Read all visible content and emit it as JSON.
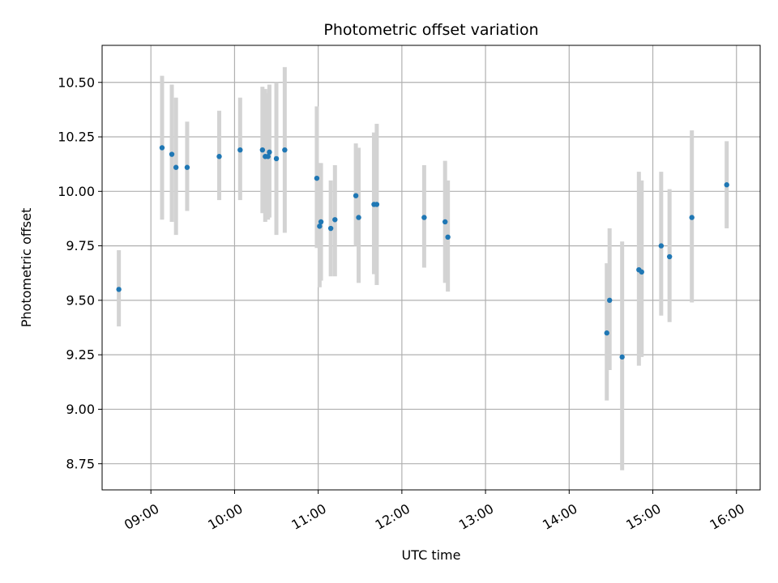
{
  "chart_data": {
    "type": "scatter",
    "title": "Photometric offset variation",
    "xlabel": "UTC time",
    "ylabel": "Photometric offset",
    "x_axis_type": "time",
    "xlim": [
      "08:25",
      "16:17"
    ],
    "ylim": [
      8.63,
      10.67
    ],
    "grid": true,
    "point_color": "#1f77b4",
    "errorbar_color": "#d3d3d3",
    "x_ticks": [
      "09:00",
      "10:00",
      "11:00",
      "12:00",
      "13:00",
      "14:00",
      "15:00",
      "16:00"
    ],
    "y_ticks": [
      "8.75",
      "9.00",
      "9.25",
      "9.50",
      "9.75",
      "10.00",
      "10.25",
      "10.50"
    ],
    "series": [
      {
        "points": [
          {
            "t": "08:37",
            "y": 9.55,
            "lo": 9.38,
            "hi": 9.73
          },
          {
            "t": "09:08",
            "y": 10.2,
            "lo": 9.87,
            "hi": 10.53
          },
          {
            "t": "09:15",
            "y": 10.17,
            "lo": 9.86,
            "hi": 10.49
          },
          {
            "t": "09:18",
            "y": 10.11,
            "lo": 9.8,
            "hi": 10.43
          },
          {
            "t": "09:26",
            "y": 10.11,
            "lo": 9.91,
            "hi": 10.32
          },
          {
            "t": "09:49",
            "y": 10.16,
            "lo": 9.96,
            "hi": 10.37
          },
          {
            "t": "10:04",
            "y": 10.19,
            "lo": 9.96,
            "hi": 10.43
          },
          {
            "t": "10:20",
            "y": 10.19,
            "lo": 9.9,
            "hi": 10.48
          },
          {
            "t": "10:22",
            "y": 10.16,
            "lo": 9.86,
            "hi": 10.47
          },
          {
            "t": "10:24",
            "y": 10.16,
            "lo": 9.87,
            "hi": 10.45
          },
          {
            "t": "10:25",
            "y": 10.18,
            "lo": 9.88,
            "hi": 10.49
          },
          {
            "t": "10:30",
            "y": 10.15,
            "lo": 9.8,
            "hi": 10.5
          },
          {
            "t": "10:36",
            "y": 10.19,
            "lo": 9.81,
            "hi": 10.57
          },
          {
            "t": "10:59",
            "y": 10.06,
            "lo": 9.74,
            "hi": 10.39
          },
          {
            "t": "11:01",
            "y": 9.84,
            "lo": 9.56,
            "hi": 10.13
          },
          {
            "t": "11:02",
            "y": 9.86,
            "lo": 9.59,
            "hi": 10.13
          },
          {
            "t": "11:09",
            "y": 9.83,
            "lo": 9.61,
            "hi": 10.05
          },
          {
            "t": "11:12",
            "y": 9.87,
            "lo": 9.61,
            "hi": 10.12
          },
          {
            "t": "11:27",
            "y": 9.98,
            "lo": 9.75,
            "hi": 10.22
          },
          {
            "t": "11:29",
            "y": 9.88,
            "lo": 9.58,
            "hi": 10.2
          },
          {
            "t": "11:40",
            "y": 9.94,
            "lo": 9.62,
            "hi": 10.27
          },
          {
            "t": "11:42",
            "y": 9.94,
            "lo": 9.57,
            "hi": 10.31
          },
          {
            "t": "12:16",
            "y": 9.88,
            "lo": 9.65,
            "hi": 10.12
          },
          {
            "t": "12:31",
            "y": 9.86,
            "lo": 9.58,
            "hi": 10.14
          },
          {
            "t": "12:33",
            "y": 9.79,
            "lo": 9.54,
            "hi": 10.05
          },
          {
            "t": "14:27",
            "y": 9.35,
            "lo": 9.04,
            "hi": 9.67
          },
          {
            "t": "14:29",
            "y": 9.5,
            "lo": 9.18,
            "hi": 9.83
          },
          {
            "t": "14:38",
            "y": 9.24,
            "lo": 8.72,
            "hi": 9.77
          },
          {
            "t": "14:50",
            "y": 9.64,
            "lo": 9.2,
            "hi": 10.09
          },
          {
            "t": "14:52",
            "y": 9.63,
            "lo": 9.24,
            "hi": 10.05
          },
          {
            "t": "15:06",
            "y": 9.75,
            "lo": 9.43,
            "hi": 10.09
          },
          {
            "t": "15:12",
            "y": 9.7,
            "lo": 9.4,
            "hi": 10.01
          },
          {
            "t": "15:28",
            "y": 9.88,
            "lo": 9.49,
            "hi": 10.28
          },
          {
            "t": "15:53",
            "y": 10.03,
            "lo": 9.83,
            "hi": 10.23
          }
        ]
      }
    ]
  }
}
